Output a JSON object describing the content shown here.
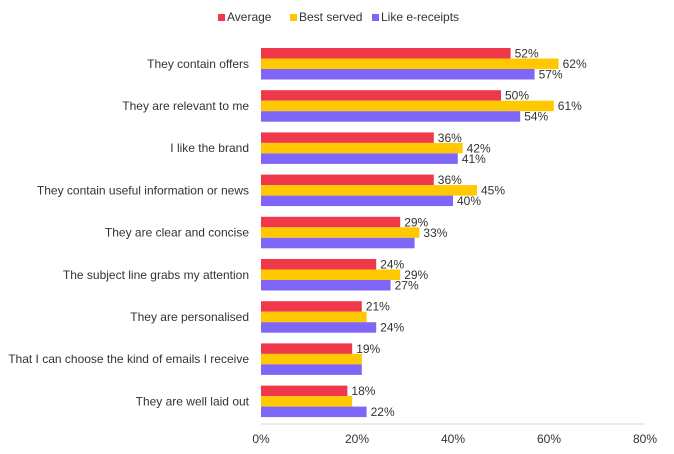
{
  "chart_data": {
    "type": "bar",
    "orientation": "horizontal",
    "categories": [
      "They contain offers",
      "They are relevant to me",
      "I like the brand",
      "They contain useful information or news",
      "They are clear and concise",
      "The subject line grabs my attention",
      "They are personalised",
      "That I can choose the kind of emails I receive",
      "They are well laid out"
    ],
    "series": [
      {
        "name": "Average",
        "color": "#f0384b",
        "values": [
          52,
          50,
          36,
          36,
          29,
          24,
          21,
          19,
          18
        ],
        "labels": [
          "52%",
          "50%",
          "36%",
          "36%",
          "29%",
          "24%",
          "21%",
          "19%",
          "18%"
        ]
      },
      {
        "name": "Best served",
        "color": "#ffc800",
        "values": [
          62,
          61,
          42,
          45,
          33,
          29,
          22,
          21,
          19
        ],
        "labels": [
          "62%",
          "61%",
          "42%",
          "45%",
          "33%",
          "29%",
          null,
          null,
          null
        ]
      },
      {
        "name": "Like e-receipts",
        "color": "#8066f6",
        "values": [
          57,
          54,
          41,
          40,
          32,
          27,
          24,
          21,
          22
        ],
        "labels": [
          "57%",
          "54%",
          "41%",
          "40%",
          null,
          "27%",
          "24%",
          null,
          "22%"
        ]
      }
    ],
    "xlim": [
      0,
      80
    ],
    "xticks": [
      "0%",
      "20%",
      "40%",
      "60%",
      "80%"
    ],
    "grid": false,
    "legend": "top-center",
    "title": "",
    "xlabel": "",
    "ylabel": ""
  }
}
